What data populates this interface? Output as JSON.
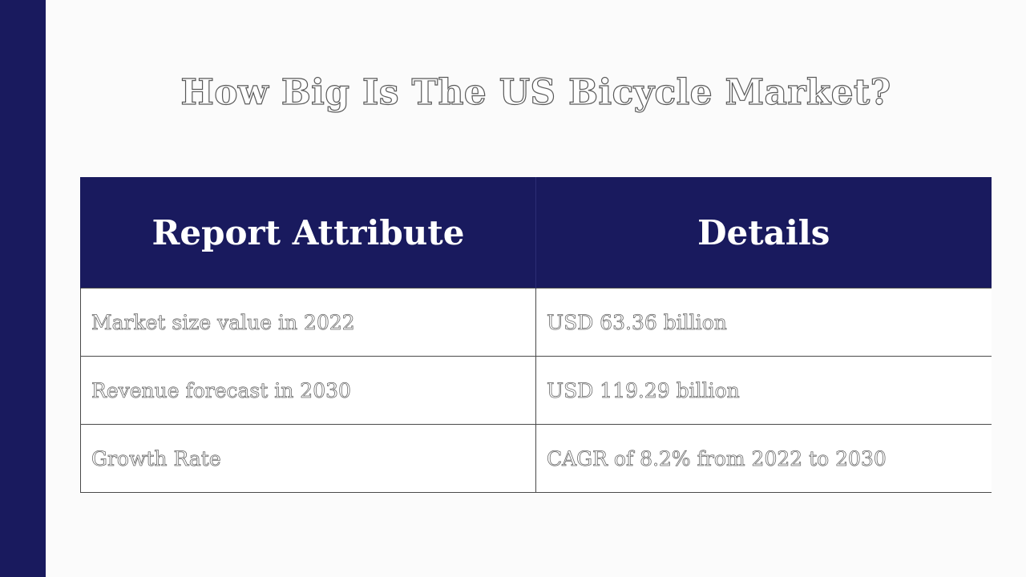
{
  "title": "How Big Is The US Bicycle Market?",
  "table": {
    "headers": [
      "Report Attribute",
      "Details"
    ],
    "rows": [
      [
        "Market size value in 2022",
        "USD 63.36 billion"
      ],
      [
        "Revenue forecast in 2030",
        "USD 119.29 billion"
      ],
      [
        "Growth Rate",
        "CAGR of 8.2% from 2022 to 2030"
      ]
    ]
  },
  "colors": {
    "accent": "#191a5e",
    "background": "#fbfbfb",
    "cell_background": "#ffffff"
  }
}
